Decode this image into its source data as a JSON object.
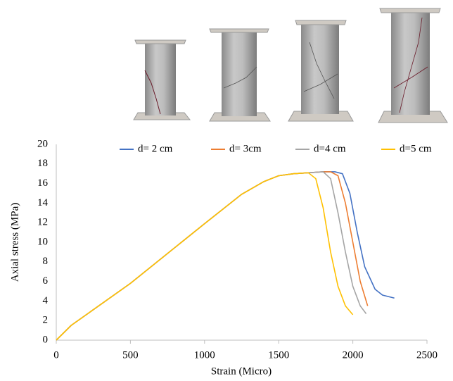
{
  "chart_data": {
    "type": "line",
    "xlabel": "Strain (Micro)",
    "ylabel": "Axial stress (MPa)",
    "xlim": [
      0,
      2500
    ],
    "xticks": [
      0,
      500,
      1000,
      1500,
      2000,
      2500
    ],
    "ylim": [
      0,
      20
    ],
    "yticks": [
      0,
      2,
      4,
      6,
      8,
      10,
      12,
      14,
      16,
      18,
      20
    ],
    "grid": false,
    "legend": "top",
    "series": [
      {
        "name": "d= 2 cm",
        "color": "#4472c4",
        "x": [
          0,
          100,
          500,
          1000,
          1250,
          1400,
          1500,
          1600,
          1700,
          1800,
          1880,
          1930,
          1980,
          2030,
          2080,
          2150,
          2200,
          2280
        ],
        "values": [
          0,
          1.5,
          5.8,
          11.9,
          14.9,
          16.2,
          16.8,
          17.0,
          17.1,
          17.2,
          17.2,
          17.0,
          15.0,
          11.0,
          7.5,
          5.2,
          4.6,
          4.3
        ]
      },
      {
        "name": "d= 3cm",
        "color": "#ed7d31",
        "x": [
          0,
          100,
          500,
          1000,
          1250,
          1400,
          1500,
          1600,
          1700,
          1800,
          1850,
          1900,
          1950,
          2000,
          2050,
          2100
        ],
        "values": [
          0,
          1.5,
          5.8,
          11.9,
          14.9,
          16.2,
          16.8,
          17.0,
          17.1,
          17.2,
          17.2,
          16.8,
          14.0,
          10.0,
          6.0,
          3.5
        ]
      },
      {
        "name": "d=4 cm",
        "color": "#a5a5a5",
        "x": [
          0,
          100,
          500,
          1000,
          1250,
          1400,
          1500,
          1600,
          1700,
          1800,
          1850,
          1900,
          1950,
          2000,
          2050,
          2090
        ],
        "values": [
          0,
          1.5,
          5.8,
          11.9,
          14.9,
          16.2,
          16.8,
          17.0,
          17.1,
          17.2,
          16.5,
          13.0,
          9.0,
          5.5,
          3.5,
          2.7
        ]
      },
      {
        "name": "d=5 cm",
        "color": "#ffc000",
        "x": [
          0,
          100,
          500,
          1000,
          1250,
          1400,
          1500,
          1600,
          1700,
          1750,
          1800,
          1850,
          1900,
          1950,
          2000
        ],
        "values": [
          0,
          1.5,
          5.8,
          11.9,
          14.9,
          16.2,
          16.8,
          17.0,
          17.1,
          16.5,
          13.5,
          9.0,
          5.5,
          3.5,
          2.6
        ]
      }
    ]
  }
}
